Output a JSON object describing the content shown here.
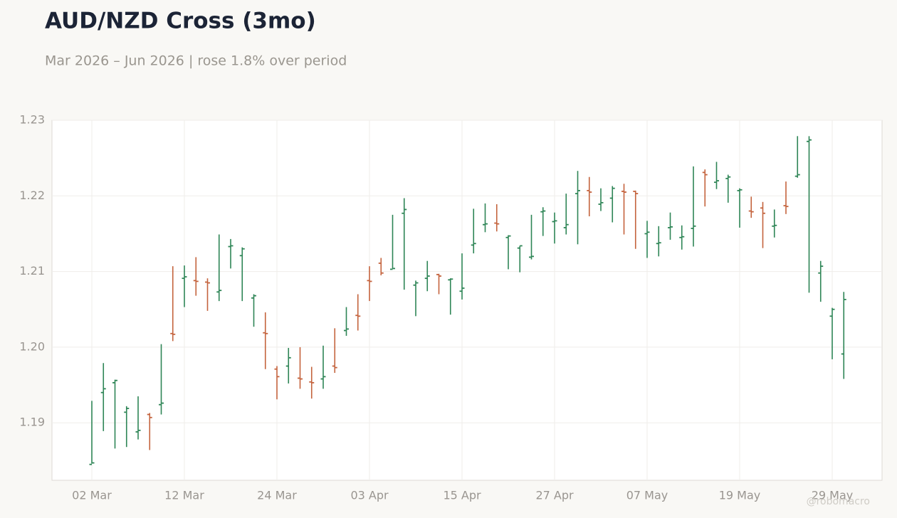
{
  "chart_data": {
    "type": "ohlc",
    "title": "AUD/NZD Cross (3mo)",
    "subtitle": "Mar 2026 – Jun 2026 | rose 1.8% over period",
    "watermark": "@robomacro",
    "up_color": "#2e8556",
    "down_color": "#c4633d",
    "grid": true,
    "categories": [
      "02 Mar",
      null,
      null,
      null,
      null,
      null,
      null,
      null,
      "12 Mar",
      null,
      null,
      null,
      null,
      null,
      null,
      null,
      "24 Mar",
      null,
      null,
      null,
      null,
      null,
      null,
      null,
      "03 Apr",
      null,
      null,
      null,
      null,
      null,
      null,
      null,
      "15 Apr",
      null,
      null,
      null,
      null,
      null,
      null,
      null,
      "27 Apr",
      null,
      null,
      null,
      null,
      null,
      null,
      null,
      "07 May",
      null,
      null,
      null,
      null,
      null,
      null,
      null,
      "19 May",
      null,
      null,
      null,
      null,
      null,
      null,
      null,
      "29 May",
      null
    ],
    "open": [
      1.1845,
      1.194,
      1.1953,
      1.1914,
      1.1888,
      1.1911,
      1.1924,
      1.2018,
      1.2091,
      1.2088,
      1.2086,
      1.2073,
      1.2133,
      1.2121,
      1.2065,
      1.2019,
      1.1971,
      1.1975,
      1.1959,
      1.1954,
      1.1958,
      1.1975,
      1.2022,
      1.2042,
      1.2088,
      1.2111,
      1.2103,
      1.2177,
      1.2082,
      1.2091,
      1.2096,
      1.2089,
      1.2074,
      1.2135,
      1.2162,
      1.2164,
      1.2145,
      1.2131,
      1.2119,
      1.2179,
      1.2166,
      1.2158,
      1.2203,
      1.2207,
      1.2189,
      1.2197,
      1.2206,
      1.2206,
      1.215,
      1.2137,
      1.2158,
      1.2145,
      1.2157,
      1.2231,
      1.2218,
      1.2223,
      1.2207,
      1.218,
      1.2184,
      1.216,
      1.2187,
      1.2226,
      1.2272,
      1.2098,
      1.2041,
      1.1991
    ],
    "high": [
      1.1929,
      1.1979,
      1.1957,
      1.1922,
      1.1935,
      1.1913,
      1.2004,
      1.2107,
      1.2108,
      1.2119,
      1.2091,
      1.2149,
      1.2143,
      1.2132,
      1.207,
      1.2046,
      1.1975,
      1.1999,
      1.2,
      1.1974,
      1.2002,
      1.2025,
      1.2053,
      1.207,
      1.2107,
      1.2118,
      1.2175,
      1.2197,
      1.2088,
      1.2114,
      1.2097,
      1.2091,
      1.2124,
      1.2183,
      1.219,
      1.2189,
      1.2148,
      1.2134,
      1.2175,
      1.2185,
      1.2178,
      1.2203,
      1.2233,
      1.2225,
      1.221,
      1.2213,
      1.2216,
      1.2207,
      1.2167,
      1.216,
      1.2178,
      1.2161,
      1.2239,
      1.2235,
      1.2245,
      1.2228,
      1.221,
      1.2199,
      1.2192,
      1.2182,
      1.2219,
      1.2279,
      1.2279,
      1.2114,
      1.2052,
      1.2073
    ],
    "low": [
      1.1846,
      1.1889,
      1.1866,
      1.1868,
      1.1878,
      1.1864,
      1.1911,
      1.2008,
      1.2053,
      1.2068,
      1.2048,
      1.2061,
      1.2104,
      1.2061,
      1.2027,
      1.1971,
      1.1931,
      1.1952,
      1.1945,
      1.1932,
      1.1945,
      1.1966,
      1.2015,
      1.2022,
      1.2061,
      1.2095,
      1.2104,
      1.2076,
      1.2041,
      1.2074,
      1.207,
      1.2043,
      1.2063,
      1.2124,
      1.2152,
      1.2153,
      1.2103,
      1.2099,
      1.2116,
      1.2147,
      1.2137,
      1.2149,
      1.2136,
      1.2173,
      1.218,
      1.2165,
      1.2149,
      1.213,
      1.2118,
      1.212,
      1.2142,
      1.2129,
      1.2133,
      1.2186,
      1.2209,
      1.2191,
      1.2158,
      1.2171,
      1.2131,
      1.2145,
      1.2176,
      1.2224,
      1.2072,
      1.206,
      1.1984,
      1.1958
    ],
    "close": [
      1.1847,
      1.1945,
      1.1956,
      1.1919,
      1.189,
      1.1907,
      1.1926,
      1.2017,
      1.2093,
      1.2087,
      1.2085,
      1.2075,
      1.2134,
      1.213,
      1.2068,
      1.2018,
      1.1961,
      1.1986,
      1.1958,
      1.1953,
      1.1961,
      1.1973,
      1.2024,
      1.2041,
      1.2087,
      1.2098,
      1.2104,
      1.2182,
      1.2085,
      1.2094,
      1.2094,
      1.209,
      1.2078,
      1.2137,
      1.2163,
      1.2163,
      1.2147,
      1.2134,
      1.212,
      1.218,
      1.2167,
      1.2162,
      1.2207,
      1.2205,
      1.2191,
      1.221,
      1.2205,
      1.2203,
      1.2152,
      1.2138,
      1.2159,
      1.2146,
      1.216,
      1.2228,
      1.222,
      1.2225,
      1.2208,
      1.2179,
      1.2177,
      1.2161,
      1.2186,
      1.2228,
      1.2274,
      1.2107,
      1.205,
      1.2063
    ],
    "ylim": [
      1.1824,
      1.23
    ],
    "yticks": [
      1.19,
      {
        "value": 1.2,
        "label": "1.20"
      },
      1.21,
      1.22,
      1.23
    ]
  }
}
